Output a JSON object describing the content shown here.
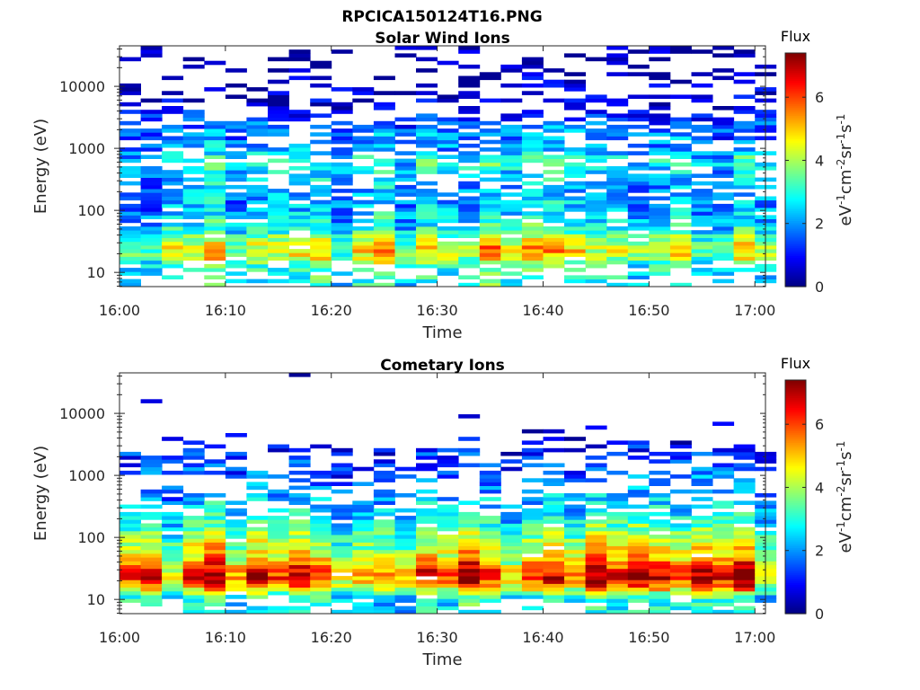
{
  "figure_title": "RPCICA150124T16.PNG",
  "colorbar": {
    "title": "Flux",
    "ylabel_parts": {
      "base1": "eV",
      "exp1": "-1",
      "base2": "cm",
      "exp2": "-2",
      "base3": "sr",
      "exp3": "-1",
      "base4": "s",
      "exp4": "-1"
    },
    "tick_values": [
      0,
      2,
      4,
      6
    ],
    "tick_labels": [
      "0",
      "2",
      "4",
      "6"
    ],
    "clim": [
      0,
      7.4
    ],
    "colormap": "jet"
  },
  "chart_data": [
    {
      "type": "heatmap",
      "title": "Solar Wind Ions",
      "xlabel": "Time",
      "ylabel": "Energy (eV)",
      "x_tick_labels": [
        "16:00",
        "16:10",
        "16:20",
        "16:30",
        "16:40",
        "16:50",
        "17:00"
      ],
      "x_tick_minutes": [
        0,
        10,
        20,
        30,
        40,
        50,
        60
      ],
      "xlim_minutes": [
        0,
        61
      ],
      "y_scale": "log",
      "ylim": [
        5.9,
        45000
      ],
      "y_tick_values": [
        10,
        100,
        1000,
        10000
      ],
      "y_tick_labels": [
        "10",
        "100",
        "1000",
        "10000"
      ],
      "time_bins_minutes_approx": 30,
      "energy_bins_approx": 64,
      "value_range": [
        0,
        7.4
      ],
      "profile_by_energy_eV": [
        {
          "energy": 8,
          "flux": 2.8
        },
        {
          "energy": 12,
          "flux": 3.0
        },
        {
          "energy": 18,
          "flux": 4.2
        },
        {
          "energy": 25,
          "flux": 4.6
        },
        {
          "energy": 35,
          "flux": 3.6
        },
        {
          "energy": 60,
          "flux": 2.6
        },
        {
          "energy": 100,
          "flux": 2.2
        },
        {
          "energy": 200,
          "flux": 2.0
        },
        {
          "energy": 400,
          "flux": 2.4
        },
        {
          "energy": 600,
          "flux": 3.0
        },
        {
          "energy": 1000,
          "flux": 2.0
        },
        {
          "energy": 2000,
          "flux": 1.8
        },
        {
          "energy": 3000,
          "flux": 1.4
        },
        {
          "energy": 5000,
          "flux": 0.5
        },
        {
          "energy": 10000,
          "flux": 0.4
        },
        {
          "energy": 20000,
          "flux": 0.3
        },
        {
          "energy": 40000,
          "flux": 0.3
        }
      ],
      "occupancy_by_energy": [
        {
          "energy": 8,
          "fill": 0.45
        },
        {
          "energy": 12,
          "fill": 0.6
        },
        {
          "energy": 18,
          "fill": 0.95
        },
        {
          "energy": 35,
          "fill": 0.9
        },
        {
          "energy": 100,
          "fill": 0.85
        },
        {
          "energy": 300,
          "fill": 0.6
        },
        {
          "energy": 600,
          "fill": 0.75
        },
        {
          "energy": 1200,
          "fill": 0.55
        },
        {
          "energy": 2000,
          "fill": 0.75
        },
        {
          "energy": 4000,
          "fill": 0.35
        },
        {
          "energy": 10000,
          "fill": 0.25
        },
        {
          "energy": 40000,
          "fill": 0.22
        }
      ]
    },
    {
      "type": "heatmap",
      "title": "Cometary Ions",
      "xlabel": "Time",
      "ylabel": "Energy (eV)",
      "x_tick_labels": [
        "16:00",
        "16:10",
        "16:20",
        "16:30",
        "16:40",
        "16:50",
        "17:00"
      ],
      "x_tick_minutes": [
        0,
        10,
        20,
        30,
        40,
        50,
        60
      ],
      "xlim_minutes": [
        0,
        61
      ],
      "y_scale": "log",
      "ylim": [
        5.9,
        45000
      ],
      "y_tick_values": [
        10,
        100,
        1000,
        10000
      ],
      "y_tick_labels": [
        "10",
        "100",
        "1000",
        "10000"
      ],
      "time_bins_minutes_approx": 30,
      "energy_bins_approx": 64,
      "value_range": [
        0,
        7.4
      ],
      "profile_by_energy_eV": [
        {
          "energy": 8,
          "flux": 2.6
        },
        {
          "energy": 12,
          "flux": 3.2
        },
        {
          "energy": 16,
          "flux": 5.0
        },
        {
          "energy": 22,
          "flux": 6.2
        },
        {
          "energy": 30,
          "flux": 5.8
        },
        {
          "energy": 45,
          "flux": 4.8
        },
        {
          "energy": 70,
          "flux": 4.2
        },
        {
          "energy": 110,
          "flux": 3.6
        },
        {
          "energy": 200,
          "flux": 2.8
        },
        {
          "energy": 400,
          "flux": 2.2
        },
        {
          "energy": 800,
          "flux": 1.8
        },
        {
          "energy": 1500,
          "flux": 1.4
        },
        {
          "energy": 2500,
          "flux": 1.1
        },
        {
          "energy": 5000,
          "flux": 0.6
        },
        {
          "energy": 12000,
          "flux": 0.4
        }
      ],
      "occupancy_by_energy": [
        {
          "energy": 8,
          "fill": 0.55
        },
        {
          "energy": 12,
          "fill": 1.0
        },
        {
          "energy": 150,
          "fill": 0.95
        },
        {
          "energy": 300,
          "fill": 0.6
        },
        {
          "energy": 600,
          "fill": 0.4
        },
        {
          "energy": 1000,
          "fill": 0.45
        },
        {
          "energy": 2200,
          "fill": 0.5
        },
        {
          "energy": 3500,
          "fill": 0.12
        },
        {
          "energy": 6000,
          "fill": 0.02
        },
        {
          "energy": 12000,
          "fill": 0.01
        }
      ]
    }
  ]
}
